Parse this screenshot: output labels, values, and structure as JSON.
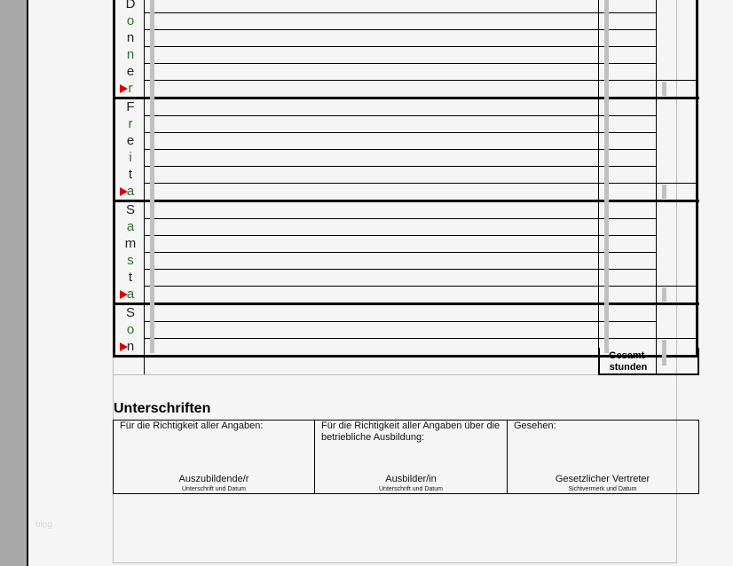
{
  "days": [
    {
      "letters": [
        "D",
        "o",
        "n",
        "n",
        "e",
        "r"
      ],
      "rows": 6
    },
    {
      "letters": [
        "F",
        "r",
        "e",
        "i",
        "t",
        "a"
      ],
      "rows": 6
    },
    {
      "letters": [
        "S",
        "a",
        "m",
        "s",
        "t",
        "a"
      ],
      "rows": 6
    },
    {
      "letters": [
        "S",
        "o",
        "n"
      ],
      "rows": 3
    }
  ],
  "total": {
    "label_line1": "Gesamt-",
    "label_line2": "stunden"
  },
  "signatures": {
    "heading": "Unterschriften",
    "cells": [
      {
        "text": "Für die Richtigkeit aller Angaben:",
        "role": "Auszubildende/r",
        "sub": "Unterschrift und Datum"
      },
      {
        "text": "Für die Richtigkeit aller Angaben über die betriebliche Ausbildung:",
        "role": "Ausbilder/in",
        "sub": "Unterschrift und Datum"
      },
      {
        "text": "Gesehen:",
        "role": "Gesetzlicher Vertreter",
        "sub": "Sichtvermerk und Datum"
      }
    ]
  },
  "watermark": "blog",
  "colors": {
    "marker": "#e00000",
    "letter_green": "#2f6b2f"
  }
}
